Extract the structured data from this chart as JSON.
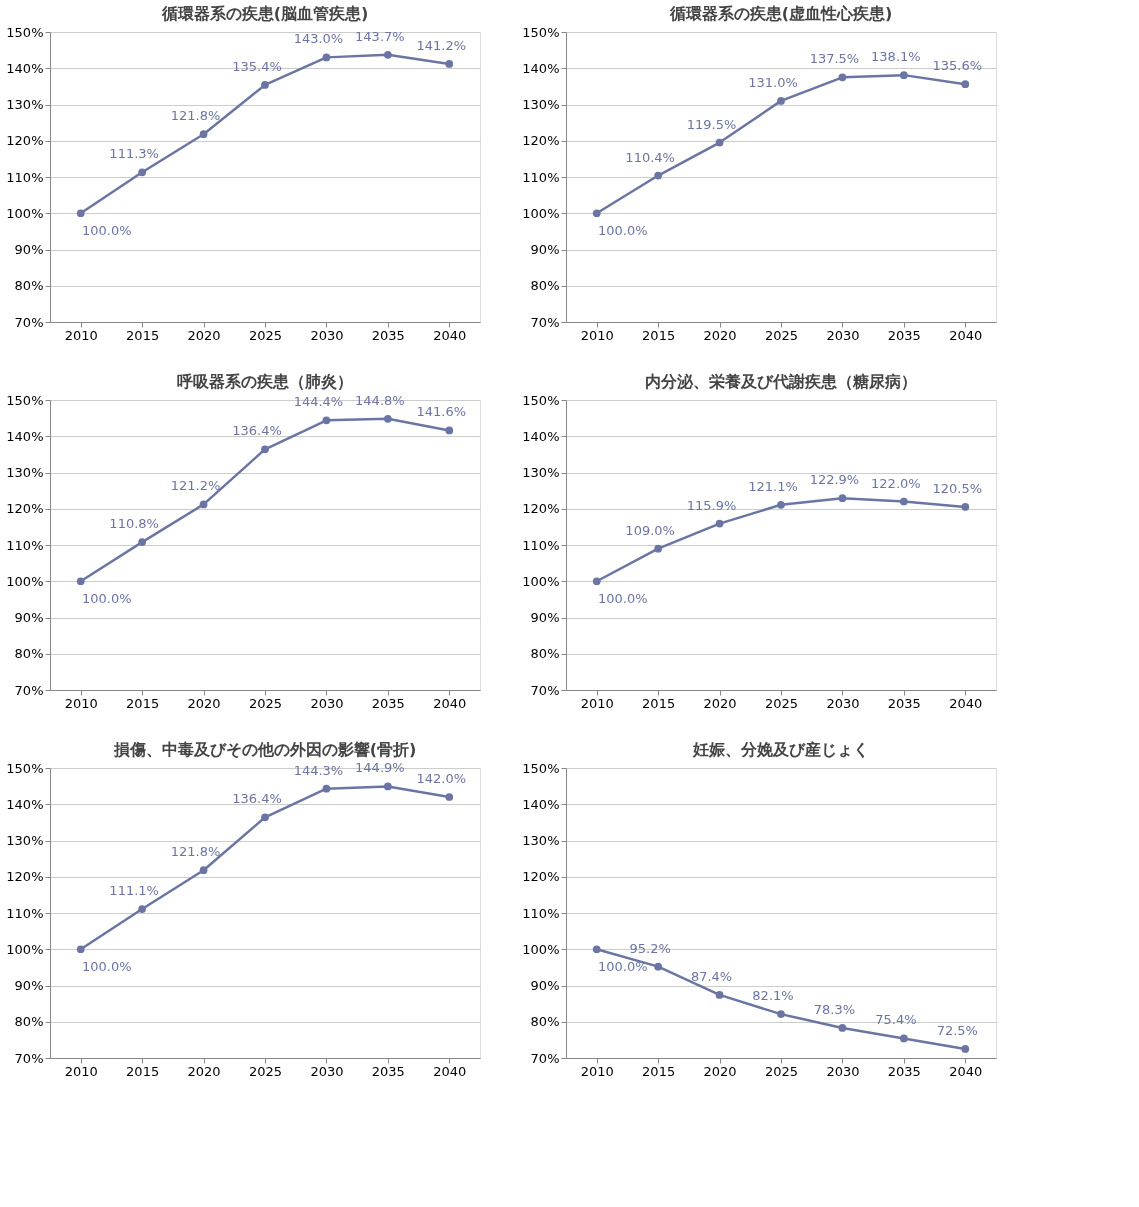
{
  "chart_data": [
    {
      "type": "line",
      "title": "循環器系の疾患(脳血管疾患)",
      "categories": [
        "2010",
        "2015",
        "2020",
        "2025",
        "2030",
        "2035",
        "2040"
      ],
      "series": [
        {
          "color": "#6b75a3",
          "values": [
            100.0,
            111.3,
            121.8,
            135.4,
            143.0,
            143.7,
            141.2
          ],
          "value_labels": [
            "100.0%",
            "111.3%",
            "121.8%",
            "135.4%",
            "143.0%",
            "143.7%",
            "141.2%"
          ]
        }
      ],
      "ylim": [
        70,
        150
      ],
      "yticks": [
        {
          "value": 70,
          "label": "70%"
        },
        {
          "value": 80,
          "label": "80%"
        },
        {
          "value": 90,
          "label": "90%"
        },
        {
          "value": 100,
          "label": "100%"
        },
        {
          "value": 110,
          "label": "110%"
        },
        {
          "value": 120,
          "label": "120%"
        },
        {
          "value": 130,
          "label": "130%"
        },
        {
          "value": 140,
          "label": "140%"
        },
        {
          "value": 150,
          "label": "150%"
        }
      ],
      "grid": "y",
      "marker": "circle",
      "line_style": "solid"
    },
    {
      "type": "line",
      "title": "循環器系の疾患(虚血性心疾患)",
      "categories": [
        "2010",
        "2015",
        "2020",
        "2025",
        "2030",
        "2035",
        "2040"
      ],
      "series": [
        {
          "color": "#6b75a3",
          "values": [
            100.0,
            110.4,
            119.5,
            131.0,
            137.5,
            138.1,
            135.6
          ],
          "value_labels": [
            "100.0%",
            "110.4%",
            "119.5%",
            "131.0%",
            "137.5%",
            "138.1%",
            "135.6%"
          ]
        }
      ],
      "ylim": [
        70,
        150
      ],
      "yticks": [
        {
          "value": 70,
          "label": "70%"
        },
        {
          "value": 80,
          "label": "80%"
        },
        {
          "value": 90,
          "label": "90%"
        },
        {
          "value": 100,
          "label": "100%"
        },
        {
          "value": 110,
          "label": "110%"
        },
        {
          "value": 120,
          "label": "120%"
        },
        {
          "value": 130,
          "label": "130%"
        },
        {
          "value": 140,
          "label": "140%"
        },
        {
          "value": 150,
          "label": "150%"
        }
      ],
      "grid": "y",
      "marker": "circle",
      "line_style": "solid"
    },
    {
      "type": "line",
      "title": "呼吸器系の疾患（肺炎）",
      "categories": [
        "2010",
        "2015",
        "2020",
        "2025",
        "2030",
        "2035",
        "2040"
      ],
      "series": [
        {
          "color": "#6b75a3",
          "values": [
            100.0,
            110.8,
            121.2,
            136.4,
            144.4,
            144.8,
            141.6
          ],
          "value_labels": [
            "100.0%",
            "110.8%",
            "121.2%",
            "136.4%",
            "144.4%",
            "144.8%",
            "141.6%"
          ]
        }
      ],
      "ylim": [
        70,
        150
      ],
      "yticks": [
        {
          "value": 70,
          "label": "70%"
        },
        {
          "value": 80,
          "label": "80%"
        },
        {
          "value": 90,
          "label": "90%"
        },
        {
          "value": 100,
          "label": "100%"
        },
        {
          "value": 110,
          "label": "110%"
        },
        {
          "value": 120,
          "label": "120%"
        },
        {
          "value": 130,
          "label": "130%"
        },
        {
          "value": 140,
          "label": "140%"
        },
        {
          "value": 150,
          "label": "150%"
        }
      ],
      "grid": "y",
      "marker": "circle",
      "line_style": "solid"
    },
    {
      "type": "line",
      "title": "内分泌、栄養及び代謝疾患（糖尿病）",
      "categories": [
        "2010",
        "2015",
        "2020",
        "2025",
        "2030",
        "2035",
        "2040"
      ],
      "series": [
        {
          "color": "#6b75a3",
          "values": [
            100.0,
            109.0,
            115.9,
            121.1,
            122.9,
            122.0,
            120.5
          ],
          "value_labels": [
            "100.0%",
            "109.0%",
            "115.9%",
            "121.1%",
            "122.9%",
            "122.0%",
            "120.5%"
          ]
        }
      ],
      "ylim": [
        70,
        150
      ],
      "yticks": [
        {
          "value": 70,
          "label": "70%"
        },
        {
          "value": 80,
          "label": "80%"
        },
        {
          "value": 90,
          "label": "90%"
        },
        {
          "value": 100,
          "label": "100%"
        },
        {
          "value": 110,
          "label": "110%"
        },
        {
          "value": 120,
          "label": "120%"
        },
        {
          "value": 130,
          "label": "130%"
        },
        {
          "value": 140,
          "label": "140%"
        },
        {
          "value": 150,
          "label": "150%"
        }
      ],
      "grid": "y",
      "marker": "circle",
      "line_style": "solid"
    },
    {
      "type": "line",
      "title": "損傷、中毒及びその他の外因の影響(骨折)",
      "categories": [
        "2010",
        "2015",
        "2020",
        "2025",
        "2030",
        "2035",
        "2040"
      ],
      "series": [
        {
          "color": "#6b75a3",
          "values": [
            100.0,
            111.1,
            121.8,
            136.4,
            144.3,
            144.9,
            142.0
          ],
          "value_labels": [
            "100.0%",
            "111.1%",
            "121.8%",
            "136.4%",
            "144.3%",
            "144.9%",
            "142.0%"
          ]
        }
      ],
      "ylim": [
        70,
        150
      ],
      "yticks": [
        {
          "value": 70,
          "label": "70%"
        },
        {
          "value": 80,
          "label": "80%"
        },
        {
          "value": 90,
          "label": "90%"
        },
        {
          "value": 100,
          "label": "100%"
        },
        {
          "value": 110,
          "label": "110%"
        },
        {
          "value": 120,
          "label": "120%"
        },
        {
          "value": 130,
          "label": "130%"
        },
        {
          "value": 140,
          "label": "140%"
        },
        {
          "value": 150,
          "label": "150%"
        }
      ],
      "grid": "y",
      "marker": "circle",
      "line_style": "solid"
    },
    {
      "type": "line",
      "title": "妊娠、分娩及び産じょく",
      "categories": [
        "2010",
        "2015",
        "2020",
        "2025",
        "2030",
        "2035",
        "2040"
      ],
      "series": [
        {
          "color": "#6b75a3",
          "values": [
            100.0,
            95.2,
            87.4,
            82.1,
            78.3,
            75.4,
            72.5
          ],
          "value_labels": [
            "100.0%",
            "95.2%",
            "87.4%",
            "82.1%",
            "78.3%",
            "75.4%",
            "72.5%"
          ]
        }
      ],
      "ylim": [
        70,
        150
      ],
      "yticks": [
        {
          "value": 70,
          "label": "70%"
        },
        {
          "value": 80,
          "label": "80%"
        },
        {
          "value": 90,
          "label": "90%"
        },
        {
          "value": 100,
          "label": "100%"
        },
        {
          "value": 110,
          "label": "110%"
        },
        {
          "value": 120,
          "label": "120%"
        },
        {
          "value": 130,
          "label": "130%"
        },
        {
          "value": 140,
          "label": "140%"
        },
        {
          "value": 150,
          "label": "150%"
        }
      ],
      "grid": "y",
      "marker": "circle",
      "line_style": "solid"
    }
  ]
}
